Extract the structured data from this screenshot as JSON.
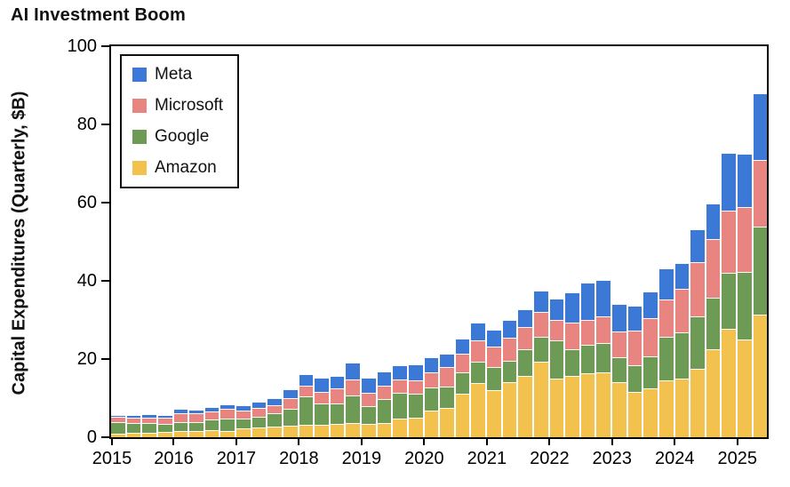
{
  "title": "AI Investment Boom",
  "chart_data": {
    "type": "bar",
    "stacked": true,
    "title": "AI Investment Boom",
    "xlabel": "",
    "ylabel": "Capital Expenditures (Quarterly, $B)",
    "ylim": [
      0,
      100
    ],
    "yticks": [
      0,
      20,
      40,
      60,
      80,
      100
    ],
    "xtick_labels": [
      "2015",
      "2016",
      "2017",
      "2018",
      "2019",
      "2020",
      "2021",
      "2022",
      "2023",
      "2024",
      "2025"
    ],
    "grid": false,
    "legend_position": "upper left",
    "categories": [
      "2015 Q1",
      "2015 Q2",
      "2015 Q3",
      "2015 Q4",
      "2016 Q1",
      "2016 Q2",
      "2016 Q3",
      "2016 Q4",
      "2017 Q1",
      "2017 Q2",
      "2017 Q3",
      "2017 Q4",
      "2018 Q1",
      "2018 Q2",
      "2018 Q3",
      "2018 Q4",
      "2019 Q1",
      "2019 Q2",
      "2019 Q3",
      "2019 Q4",
      "2020 Q1",
      "2020 Q2",
      "2020 Q3",
      "2020 Q4",
      "2021 Q1",
      "2021 Q2",
      "2021 Q3",
      "2021 Q4",
      "2022 Q1",
      "2022 Q2",
      "2022 Q3",
      "2022 Q4",
      "2023 Q1",
      "2023 Q2",
      "2023 Q3",
      "2023 Q4",
      "2024 Q1",
      "2024 Q2",
      "2024 Q3",
      "2024 Q4",
      "2025 Q1",
      "2025 Q2"
    ],
    "series": [
      {
        "name": "Amazon",
        "color": "#f3c14e",
        "stack_order": "bottom",
        "values": [
          1.0,
          1.1,
          1.2,
          1.3,
          1.5,
          1.7,
          1.9,
          1.6,
          2.2,
          2.5,
          2.7,
          3.0,
          3.1,
          3.2,
          3.4,
          3.7,
          3.4,
          3.6,
          4.7,
          5.0,
          6.8,
          7.5,
          11.1,
          13.8,
          12.1,
          14.1,
          15.7,
          19.3,
          14.9,
          15.7,
          16.4,
          16.6,
          14.2,
          11.5,
          12.5,
          14.6,
          14.9,
          17.6,
          22.6,
          27.8,
          25.0,
          31.4
        ]
      },
      {
        "name": "Google",
        "color": "#6d9b55",
        "stack_order": "second",
        "values": [
          2.9,
          2.5,
          2.4,
          2.1,
          2.4,
          2.1,
          2.6,
          3.1,
          2.5,
          2.8,
          3.5,
          4.3,
          7.3,
          5.5,
          5.3,
          7.1,
          4.6,
          6.1,
          6.7,
          6.1,
          6.0,
          5.4,
          5.4,
          5.5,
          5.9,
          5.5,
          6.8,
          6.4,
          9.8,
          6.8,
          7.3,
          7.6,
          6.3,
          6.9,
          8.1,
          11.0,
          12.0,
          13.2,
          13.1,
          14.3,
          17.2,
          22.4
        ]
      },
      {
        "name": "Microsoft",
        "color": "#e98580",
        "stack_order": "third",
        "values": [
          1.4,
          1.5,
          1.5,
          1.6,
          2.3,
          2.3,
          2.2,
          2.5,
          2.1,
          2.3,
          2.1,
          2.6,
          2.9,
          3.0,
          3.7,
          3.9,
          3.4,
          3.4,
          3.4,
          3.5,
          3.9,
          5.0,
          4.9,
          5.4,
          5.1,
          5.8,
          5.8,
          6.3,
          5.3,
          6.9,
          6.3,
          6.8,
          6.6,
          8.9,
          9.9,
          9.7,
          11.0,
          13.9,
          14.9,
          15.8,
          16.7,
          17.1
        ]
      },
      {
        "name": "Meta",
        "color": "#3c79d7",
        "stack_order": "top",
        "values": [
          0.5,
          0.6,
          0.8,
          0.7,
          1.1,
          1.0,
          1.1,
          1.2,
          1.3,
          1.4,
          1.8,
          2.3,
          2.8,
          3.5,
          3.3,
          4.4,
          3.8,
          3.8,
          3.7,
          4.0,
          3.7,
          3.4,
          3.9,
          4.7,
          4.3,
          4.5,
          4.5,
          5.4,
          5.5,
          7.7,
          9.5,
          9.2,
          7.1,
          6.4,
          6.8,
          7.9,
          6.7,
          8.5,
          9.2,
          14.8,
          13.7,
          17.0
        ]
      }
    ],
    "legend_items": [
      {
        "label": "Meta",
        "color": "#3c79d7"
      },
      {
        "label": "Microsoft",
        "color": "#e98580"
      },
      {
        "label": "Google",
        "color": "#6d9b55"
      },
      {
        "label": "Amazon",
        "color": "#f3c14e"
      }
    ]
  },
  "colors": {
    "background": "#ffffff",
    "axis": "#000000",
    "bar_edge": "#ffffff",
    "meta_blue": "#3c79d7",
    "microsoft_red": "#e98580",
    "google_green": "#6d9b55",
    "amazon_yellow": "#f3c14e"
  }
}
